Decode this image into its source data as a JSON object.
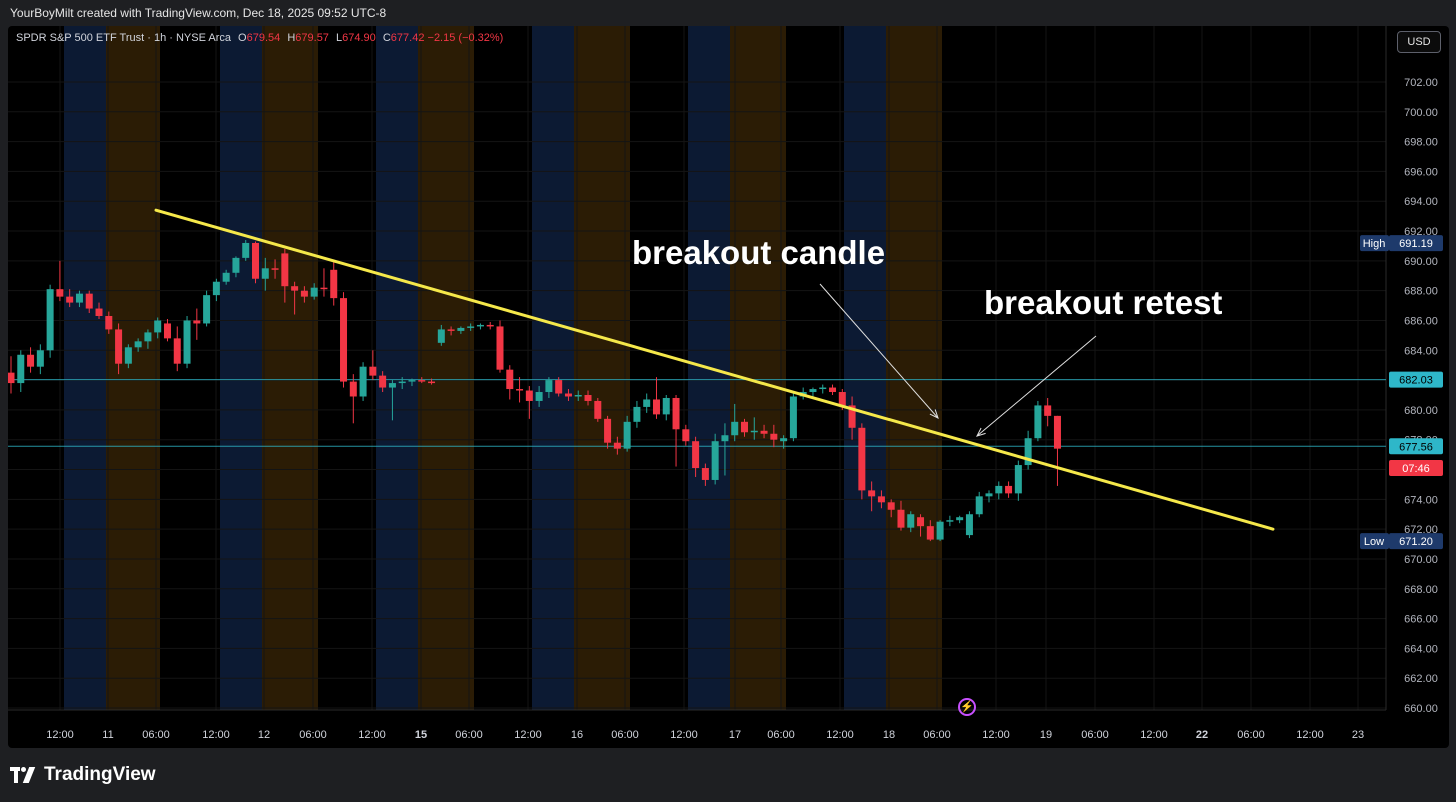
{
  "header": {
    "credit": "YourBoyMilt created with TradingView.com, Dec 18, 2025 09:52 UTC-8"
  },
  "legend": {
    "symbol": "SPDR S&P 500 ETF Trust · 1h · NYSE Arca",
    "o_label": "O",
    "o": "679.54",
    "h_label": "H",
    "h": "679.57",
    "l_label": "L",
    "l": "674.90",
    "c_label": "C",
    "c": "677.42",
    "change": "−2.15 (−0.32%)"
  },
  "currency_button": "USD",
  "annotations": {
    "breakout_candle": "breakout candle",
    "breakout_retest": "breakout retest"
  },
  "branding": "TradingView",
  "colors": {
    "up": "#26a69a",
    "down": "#f23645",
    "trendline": "#f5e84a",
    "level_line": "#2eb7c9",
    "session_blue": "#0c1a33",
    "session_orange": "#2b1c05"
  },
  "chart_data": {
    "type": "candlestick",
    "timeframe": "1h",
    "ylim": [
      659,
      704
    ],
    "y_ticks": [
      660,
      662,
      664,
      666,
      668,
      670,
      672,
      674,
      676,
      678,
      680,
      682,
      684,
      686,
      688,
      690,
      692,
      694,
      696,
      698,
      700,
      702
    ],
    "x_tick_labels": [
      "12:00",
      "11",
      "06:00",
      "12:00",
      "12",
      "06:00",
      "12:00",
      "15",
      "06:00",
      "12:00",
      "16",
      "06:00",
      "12:00",
      "17",
      "06:00",
      "12:00",
      "18",
      "06:00",
      "12:00",
      "19",
      "06:00",
      "12:00",
      "22",
      "06:00",
      "12:00",
      "23"
    ],
    "candles": [
      [
        682.5,
        683.6,
        681.1,
        681.8
      ],
      [
        681.8,
        684.0,
        681.2,
        683.7
      ],
      [
        683.7,
        684.2,
        682.5,
        682.9
      ],
      [
        682.9,
        684.4,
        682.4,
        684.0
      ],
      [
        684.0,
        688.4,
        683.5,
        688.1
      ],
      [
        688.1,
        690.0,
        687.3,
        687.6
      ],
      [
        687.6,
        688.1,
        686.9,
        687.2
      ],
      [
        687.2,
        688.0,
        686.9,
        687.8
      ],
      [
        687.8,
        688.0,
        686.5,
        686.8
      ],
      [
        686.8,
        687.2,
        686.1,
        686.3
      ],
      [
        686.3,
        686.6,
        685.1,
        685.4
      ],
      [
        685.4,
        685.8,
        682.4,
        683.1
      ],
      [
        683.1,
        684.4,
        682.8,
        684.2
      ],
      [
        684.2,
        684.8,
        683.9,
        684.6
      ],
      [
        684.6,
        685.4,
        684.1,
        685.2
      ],
      [
        685.2,
        686.2,
        684.8,
        686.0
      ],
      [
        685.8,
        686.1,
        684.6,
        684.8
      ],
      [
        684.8,
        685.6,
        682.6,
        683.1
      ],
      [
        683.1,
        686.3,
        682.8,
        686.0
      ],
      [
        686.0,
        686.8,
        684.7,
        685.8
      ],
      [
        685.8,
        688.0,
        685.6,
        687.7
      ],
      [
        687.7,
        688.8,
        687.3,
        688.6
      ],
      [
        688.6,
        689.4,
        688.4,
        689.2
      ],
      [
        689.2,
        690.3,
        688.9,
        690.2
      ],
      [
        690.2,
        691.4,
        690.0,
        691.2
      ],
      [
        691.2,
        691.3,
        688.5,
        688.8
      ],
      [
        688.8,
        690.2,
        688.0,
        689.5
      ],
      [
        689.5,
        690.1,
        688.8,
        689.4
      ],
      [
        690.5,
        690.8,
        687.2,
        688.3
      ],
      [
        688.3,
        688.6,
        686.4,
        688.0
      ],
      [
        688.0,
        688.3,
        687.2,
        687.6
      ],
      [
        687.6,
        688.5,
        687.4,
        688.2
      ],
      [
        688.2,
        689.5,
        687.6,
        688.1
      ],
      [
        689.4,
        690.0,
        687.0,
        687.5
      ],
      [
        687.5,
        687.9,
        681.5,
        681.9
      ],
      [
        681.9,
        682.4,
        679.1,
        680.9
      ],
      [
        680.9,
        683.2,
        680.6,
        682.9
      ],
      [
        682.9,
        684.0,
        682.0,
        682.3
      ],
      [
        682.3,
        682.6,
        681.2,
        681.5
      ],
      [
        681.5,
        682.0,
        679.3,
        681.8
      ],
      [
        681.8,
        682.2,
        681.4,
        681.9
      ],
      [
        681.9,
        682.1,
        681.6,
        682.0
      ],
      [
        682.0,
        682.2,
        681.8,
        681.9
      ],
      [
        681.9,
        682.1,
        681.7,
        681.8
      ],
      [
        684.5,
        685.7,
        684.3,
        685.4
      ],
      [
        685.4,
        685.6,
        685.0,
        685.3
      ],
      [
        685.3,
        685.6,
        685.1,
        685.5
      ],
      [
        685.5,
        685.8,
        685.3,
        685.6
      ],
      [
        685.6,
        685.8,
        685.4,
        685.7
      ],
      [
        685.7,
        685.9,
        685.4,
        685.6
      ],
      [
        685.6,
        686.0,
        682.5,
        682.7
      ],
      [
        682.7,
        683.0,
        680.7,
        681.4
      ],
      [
        681.4,
        682.2,
        680.5,
        681.3
      ],
      [
        681.3,
        681.6,
        679.4,
        680.6
      ],
      [
        680.6,
        681.6,
        680.2,
        681.2
      ],
      [
        681.2,
        682.2,
        680.8,
        682.0
      ],
      [
        682.0,
        682.2,
        680.9,
        681.1
      ],
      [
        681.1,
        681.4,
        680.6,
        680.9
      ],
      [
        680.9,
        681.3,
        680.6,
        681.0
      ],
      [
        681.0,
        681.3,
        680.3,
        680.6
      ],
      [
        680.6,
        680.8,
        679.2,
        679.4
      ],
      [
        679.4,
        679.6,
        677.4,
        677.8
      ],
      [
        677.8,
        678.2,
        677.0,
        677.4
      ],
      [
        677.4,
        679.6,
        677.2,
        679.2
      ],
      [
        679.2,
        680.6,
        678.8,
        680.2
      ],
      [
        680.2,
        681.1,
        679.8,
        680.7
      ],
      [
        680.7,
        682.2,
        679.4,
        679.7
      ],
      [
        679.7,
        681.0,
        679.3,
        680.8
      ],
      [
        680.8,
        681.0,
        676.2,
        678.7
      ],
      [
        678.7,
        679.0,
        677.6,
        677.9
      ],
      [
        677.9,
        678.2,
        675.5,
        676.1
      ],
      [
        676.1,
        676.4,
        674.9,
        675.3
      ],
      [
        675.3,
        678.4,
        675.0,
        677.9
      ],
      [
        677.9,
        679.1,
        675.6,
        678.3
      ],
      [
        678.3,
        680.4,
        677.9,
        679.2
      ],
      [
        679.2,
        679.4,
        678.2,
        678.5
      ],
      [
        678.5,
        679.5,
        678.0,
        678.6
      ],
      [
        678.6,
        679.0,
        678.1,
        678.4
      ],
      [
        678.4,
        679.0,
        677.5,
        678.0
      ],
      [
        677.9,
        678.3,
        677.4,
        678.1
      ],
      [
        678.1,
        681.2,
        677.9,
        680.9
      ],
      [
        680.9,
        681.5,
        680.7,
        681.2
      ],
      [
        681.2,
        681.5,
        680.9,
        681.4
      ],
      [
        681.4,
        681.7,
        681.1,
        681.5
      ],
      [
        681.5,
        681.7,
        681.0,
        681.2
      ],
      [
        681.2,
        681.4,
        680.0,
        680.3
      ],
      [
        680.3,
        680.9,
        678.0,
        678.8
      ],
      [
        678.8,
        679.1,
        674.0,
        674.6
      ],
      [
        674.6,
        675.2,
        673.2,
        674.2
      ],
      [
        674.2,
        674.6,
        673.4,
        673.8
      ],
      [
        673.8,
        674.0,
        672.8,
        673.3
      ],
      [
        673.3,
        673.9,
        671.9,
        672.1
      ],
      [
        672.1,
        673.2,
        671.8,
        673.0
      ],
      [
        672.8,
        673.0,
        671.5,
        672.2
      ],
      [
        672.2,
        672.6,
        671.2,
        671.3
      ],
      [
        671.3,
        672.6,
        671.2,
        672.5
      ],
      [
        672.5,
        672.9,
        672.2,
        672.6
      ],
      [
        672.6,
        672.9,
        672.4,
        672.8
      ],
      [
        671.6,
        673.2,
        671.4,
        673.0
      ],
      [
        673.0,
        674.5,
        672.8,
        674.2
      ],
      [
        674.2,
        674.6,
        673.8,
        674.4
      ],
      [
        674.4,
        675.2,
        674.0,
        674.9
      ],
      [
        674.9,
        675.2,
        674.1,
        674.4
      ],
      [
        674.4,
        676.6,
        673.9,
        676.3
      ],
      [
        676.3,
        678.6,
        676.0,
        678.1
      ],
      [
        678.1,
        680.6,
        677.9,
        680.3
      ],
      [
        680.3,
        680.8,
        678.9,
        679.6
      ],
      [
        679.6,
        679.6,
        674.9,
        677.4
      ]
    ],
    "trendline": {
      "from": [
        "10 Dec 05:00",
        693.4
      ],
      "to": [
        "22 Dec 07:00",
        672.0
      ]
    },
    "horizontal_levels": [
      682.03,
      677.56
    ],
    "price_labels": [
      {
        "label": "High",
        "value": "691.19"
      },
      {
        "label": "",
        "value": "682.03"
      },
      {
        "label": "",
        "value": "677.56"
      },
      {
        "label": "",
        "value": "07:46"
      },
      {
        "label": "Low",
        "value": "671.20"
      }
    ],
    "grid": true
  }
}
